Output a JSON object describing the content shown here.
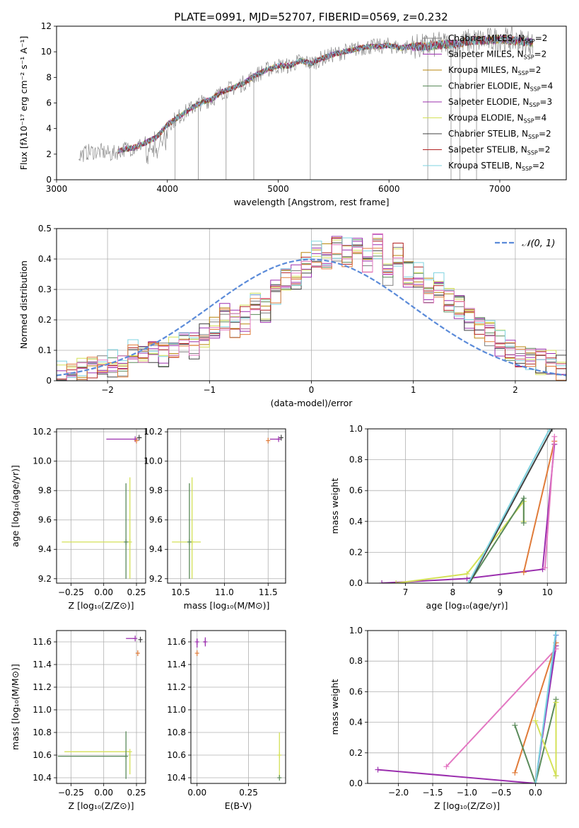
{
  "figure_title": "PLATE=0991, MJD=52707, FIBERID=0569, z=0.232",
  "series_colors": [
    "#7f7f7f",
    "#9b2fae",
    "#b8860b",
    "#5a8a5a",
    "#9b2fae",
    "#d4e157",
    "#404040",
    "#b22222",
    "#7fd3e0"
  ],
  "chart_data": [
    {
      "id": "spectrum",
      "type": "line",
      "title": "PLATE=0991, MJD=52707, FIBERID=0569, z=0.232",
      "xlabel": "wavelength [Angstrom, rest frame]",
      "ylabel": "Flux [fλ10⁻¹⁷ erg cm⁻² s⁻¹ A⁻¹]",
      "xlim": [
        3000,
        7600
      ],
      "ylim": [
        0,
        12
      ],
      "xticks": [
        3000,
        4000,
        5000,
        6000,
        7000
      ],
      "yticks": [
        0,
        2,
        4,
        6,
        8,
        10,
        12
      ],
      "grid": false,
      "legend_position": "right",
      "legend": [
        {
          "label": "Chabrier MILES, N",
          "sub": "SSP",
          "suffix": "=2",
          "color": "#7f7f7f"
        },
        {
          "label": "Salpeter MILES, N",
          "sub": "SSP",
          "suffix": "=2",
          "color": "#9b2fae"
        },
        {
          "label": "Kroupa MILES, N",
          "sub": "SSP",
          "suffix": "=2",
          "color": "#b8860b"
        },
        {
          "label": "Chabrier ELODIE, N",
          "sub": "SSP",
          "suffix": "=4",
          "color": "#5a8a5a"
        },
        {
          "label": "Salpeter ELODIE, N",
          "sub": "SSP",
          "suffix": "=3",
          "color": "#9b2fae"
        },
        {
          "label": "Kroupa ELODIE, N",
          "sub": "SSP",
          "suffix": "=4",
          "color": "#d4e157"
        },
        {
          "label": "Chabrier STELIB, N",
          "sub": "SSP",
          "suffix": "=2",
          "color": "#404040"
        },
        {
          "label": "Salpeter STELIB, N",
          "sub": "SSP",
          "suffix": "=2",
          "color": "#b22222"
        },
        {
          "label": "Kroupa STELIB, N",
          "sub": "SSP",
          "suffix": "=2",
          "color": "#7fd3e0"
        }
      ],
      "envelope": {
        "x": [
          3200,
          3300,
          3400,
          3500,
          3600,
          3700,
          3800,
          3900,
          4000,
          4100,
          4200,
          4300,
          4400,
          4500,
          4600,
          4700,
          4800,
          4900,
          5000,
          5100,
          5200,
          5300,
          5400,
          5500,
          5600,
          5700,
          5800,
          5900,
          6000,
          6100,
          6200,
          6300,
          6400,
          6500,
          6600,
          6700,
          6800,
          6900,
          7000,
          7100,
          7200,
          7300
        ],
        "y": [
          1.9,
          2.2,
          2.2,
          2.0,
          2.4,
          2.5,
          2.9,
          3.3,
          4.3,
          4.9,
          5.5,
          6.0,
          6.3,
          6.9,
          7.2,
          7.6,
          8.2,
          8.6,
          8.9,
          8.9,
          9.3,
          9.1,
          9.5,
          9.8,
          10.0,
          10.2,
          10.4,
          10.4,
          10.5,
          10.3,
          10.4,
          10.4,
          10.5,
          10.6,
          10.6,
          10.8,
          10.9,
          10.9,
          11.0,
          10.9,
          10.8,
          10.7
        ]
      }
    },
    {
      "id": "residuals",
      "type": "line",
      "xlabel": "(data-model)/error",
      "ylabel": "Normed distribution",
      "xlim": [
        -2.5,
        2.5
      ],
      "ylim": [
        0,
        0.5
      ],
      "xticks": [
        -2,
        -1,
        0,
        1,
        2
      ],
      "yticks": [
        0.0,
        0.1,
        0.2,
        0.3,
        0.4,
        0.5
      ],
      "grid": true,
      "legend_position": "top-right",
      "legend": [
        {
          "label": "𝒩(0, 1)",
          "color": "#5b8bd9"
        }
      ],
      "bin_edges_start": -2.5,
      "bin_width": 0.1,
      "histogram_values": [
        0.02,
        0.025,
        0.03,
        0.04,
        0.05,
        0.06,
        0.055,
        0.09,
        0.08,
        0.1,
        0.09,
        0.12,
        0.13,
        0.12,
        0.15,
        0.18,
        0.21,
        0.19,
        0.2,
        0.26,
        0.23,
        0.29,
        0.33,
        0.35,
        0.38,
        0.41,
        0.4,
        0.44,
        0.42,
        0.43,
        0.4,
        0.44,
        0.36,
        0.41,
        0.35,
        0.35,
        0.3,
        0.31,
        0.27,
        0.24,
        0.21,
        0.18,
        0.16,
        0.12,
        0.1,
        0.08,
        0.07,
        0.06,
        0.05,
        0.05
      ]
    },
    {
      "id": "age-vs-Z",
      "type": "scatter",
      "xlabel": "Z [log₁₀(Z/Z⊙)]",
      "ylabel": "age  [log₁₀(age/yr)]",
      "xlim": [
        -0.36,
        0.32
      ],
      "ylim": [
        9.17,
        10.22
      ],
      "xticks": [
        -0.25,
        0.0,
        0.25
      ],
      "xtick_labels": [
        "−0.25",
        "0.00",
        "0.25"
      ],
      "yticks": [
        9.2,
        9.4,
        9.6,
        9.8,
        10.0,
        10.2
      ],
      "ytick_labels": [
        "9.2",
        "9.4",
        "9.6",
        "9.8",
        "10.0",
        "10.2"
      ],
      "grid": true,
      "points": [
        {
          "x": 0.24,
          "y": 10.15,
          "xerr": [
            0.22,
            0.02
          ],
          "color": "#9b2fae"
        },
        {
          "x": 0.27,
          "y": 10.16,
          "xerr": [
            0.0,
            0.02
          ],
          "color": "#404040"
        },
        {
          "x": 0.25,
          "y": 10.14,
          "color": "#e07b39"
        },
        {
          "x": 0.2,
          "y": 9.45,
          "xerr": [
            0.52,
            0.0
          ],
          "yerr": [
            0.25,
            0.44
          ],
          "color": "#d4e157"
        },
        {
          "x": 0.17,
          "y": 9.45,
          "xerr": [
            0.0,
            0.0
          ],
          "yerr": [
            0.25,
            0.4
          ],
          "color": "#5a8a5a"
        }
      ]
    },
    {
      "id": "age-vs-mass",
      "type": "scatter",
      "xlabel": "mass [log₁₀(M/M⊙)]",
      "ylabel": "",
      "xlim": [
        10.35,
        11.7
      ],
      "ylim": [
        9.17,
        10.22
      ],
      "xticks": [
        10.5,
        11.0,
        11.5
      ],
      "xtick_labels": [
        "10.5",
        "11.0",
        "11.5"
      ],
      "yticks": [
        9.2,
        9.4,
        9.6,
        9.8,
        10.0,
        10.2
      ],
      "ytick_labels": [
        "9.2",
        "9.4",
        "9.6",
        "9.8",
        "10.0",
        "10.2"
      ],
      "grid": true,
      "points": [
        {
          "x": 11.62,
          "y": 10.15,
          "xerr": [
            0.1,
            0.02
          ],
          "color": "#9b2fae"
        },
        {
          "x": 11.5,
          "y": 10.14,
          "color": "#e07b39"
        },
        {
          "x": 11.65,
          "y": 10.16,
          "color": "#404040"
        },
        {
          "x": 10.63,
          "y": 9.45,
          "xerr": [
            0.23,
            0.1
          ],
          "yerr": [
            0.25,
            0.44
          ],
          "color": "#d4e157"
        },
        {
          "x": 10.6,
          "y": 9.45,
          "yerr": [
            0.25,
            0.4
          ],
          "color": "#5a8a5a"
        }
      ]
    },
    {
      "id": "weight-vs-age",
      "type": "line",
      "xlabel": "age  [log₁₀(age/yr)]",
      "ylabel": "mass weight",
      "xlim": [
        6.2,
        10.4
      ],
      "ylim": [
        0,
        1
      ],
      "xticks": [
        7,
        8,
        9,
        10
      ],
      "xtick_labels": [
        "7",
        "8",
        "9",
        "10"
      ],
      "yticks": [
        0.0,
        0.2,
        0.4,
        0.6,
        0.8,
        1.0
      ],
      "ytick_labels": [
        "0.0",
        "0.2",
        "0.4",
        "0.6",
        "0.8",
        "1.0"
      ],
      "grid": true,
      "series": [
        {
          "color": "#9b2fae",
          "x": [
            6.5,
            8.3,
            9.9,
            10.15
          ],
          "y": [
            0.0,
            0.03,
            0.09,
            0.9
          ]
        },
        {
          "color": "#e07b39",
          "x": [
            9.5,
            10.15
          ],
          "y": [
            0.07,
            0.92
          ]
        },
        {
          "color": "#d4e157",
          "x": [
            6.8,
            8.3,
            9.5,
            9.5
          ],
          "y": [
            0.0,
            0.06,
            0.53,
            0.4
          ]
        },
        {
          "color": "#5a8a5a",
          "x": [
            8.35,
            9.5,
            9.5
          ],
          "y": [
            0.0,
            0.55,
            0.39
          ]
        },
        {
          "color": "#404040",
          "x": [
            8.35,
            10.1
          ],
          "y": [
            0.0,
            1.0
          ]
        },
        {
          "color": "#7fd3e0",
          "x": [
            8.33,
            10.05
          ],
          "y": [
            0.0,
            1.0
          ]
        },
        {
          "color": "#e377c2",
          "x": [
            9.95,
            10.15
          ],
          "y": [
            0.1,
            0.95
          ]
        }
      ]
    },
    {
      "id": "mass-vs-Z",
      "type": "scatter",
      "xlabel": "Z [log₁₀(Z/Z⊙)]",
      "ylabel": "mass [log₁₀(M/M⊙)]",
      "xlim": [
        -0.36,
        0.32
      ],
      "ylim": [
        10.35,
        11.7
      ],
      "xticks": [
        -0.25,
        0.0,
        0.25
      ],
      "xtick_labels": [
        "−0.25",
        "0.00",
        "0.25"
      ],
      "yticks": [
        10.4,
        10.6,
        10.8,
        11.0,
        11.2,
        11.4,
        11.6
      ],
      "ytick_labels": [
        "10.4",
        "10.6",
        "10.8",
        "11.0",
        "11.2",
        "11.4",
        "11.6"
      ],
      "grid": true,
      "points": [
        {
          "x": 0.24,
          "y": 11.63,
          "xerr": [
            0.07,
            0.0
          ],
          "color": "#9b2fae"
        },
        {
          "x": 0.28,
          "y": 11.62,
          "color": "#404040"
        },
        {
          "x": 0.26,
          "y": 11.5,
          "color": "#e07b39"
        },
        {
          "x": 0.2,
          "y": 10.63,
          "xerr": [
            0.5,
            0.0
          ],
          "yerr": [
            0.2,
            0.0
          ],
          "color": "#d4e157"
        },
        {
          "x": 0.17,
          "y": 10.59,
          "xerr": [
            0.52,
            0.0
          ],
          "yerr": [
            0.2,
            0.22
          ],
          "color": "#5a8a5a"
        }
      ]
    },
    {
      "id": "mass-vs-EBV",
      "type": "scatter",
      "xlabel": "E(B-V)",
      "ylabel": "",
      "xlim": [
        -0.03,
        0.43
      ],
      "ylim": [
        10.35,
        11.7
      ],
      "xticks": [
        0.0,
        0.25
      ],
      "xtick_labels": [
        "0.00",
        "0.25"
      ],
      "yticks": [
        10.4,
        10.6,
        10.8,
        11.0,
        11.2,
        11.4,
        11.6
      ],
      "ytick_labels": [
        "10.4",
        "10.6",
        "10.8",
        "11.0",
        "11.2",
        "11.4",
        "11.6"
      ],
      "grid": true,
      "points": [
        {
          "x": 0.0,
          "y": 11.6,
          "yerr": [
            0.05,
            0.03
          ],
          "color": "#9b2fae"
        },
        {
          "x": 0.04,
          "y": 11.6,
          "xerr": [
            0.01,
            0.0
          ],
          "yerr": [
            0.04,
            0.04
          ],
          "color": "#9b2fae"
        },
        {
          "x": 0.0,
          "y": 11.5,
          "color": "#e07b39"
        },
        {
          "x": 0.4,
          "y": 10.6,
          "yerr": [
            0.2,
            0.2
          ],
          "color": "#d4e157"
        },
        {
          "x": 0.4,
          "y": 10.4,
          "color": "#5a8a5a"
        }
      ]
    },
    {
      "id": "weight-vs-Z",
      "type": "line",
      "xlabel": "Z [log₁₀(Z/Z⊙)]",
      "ylabel": "mass weight",
      "xlim": [
        -2.45,
        0.45
      ],
      "ylim": [
        0,
        1
      ],
      "xticks": [
        -2.0,
        -1.5,
        -1.0,
        -0.5,
        0.0
      ],
      "xtick_labels": [
        "−2.0",
        "−1.5",
        "−1.0",
        "−0.5",
        "0.0"
      ],
      "yticks": [
        0.0,
        0.2,
        0.4,
        0.6,
        0.8,
        1.0
      ],
      "ytick_labels": [
        "0.0",
        "0.2",
        "0.4",
        "0.6",
        "0.8",
        "1.0"
      ],
      "grid": true,
      "series": [
        {
          "color": "#9b2fae",
          "x": [
            -2.3,
            0.0,
            0.3
          ],
          "y": [
            0.09,
            0.0,
            0.9
          ]
        },
        {
          "color": "#e377c2",
          "x": [
            -1.3,
            0.3
          ],
          "y": [
            0.11,
            0.88
          ]
        },
        {
          "color": "#e07b39",
          "x": [
            -0.3,
            0.3
          ],
          "y": [
            0.07,
            0.92
          ]
        },
        {
          "color": "#5a8a5a",
          "x": [
            -0.3,
            0.0,
            0.3,
            0.3
          ],
          "y": [
            0.38,
            0.0,
            0.55,
            0.05
          ]
        },
        {
          "color": "#d4e157",
          "x": [
            0.0,
            0.3,
            0.3
          ],
          "y": [
            0.41,
            0.05,
            0.53
          ]
        },
        {
          "color": "#5b8bd9",
          "x": [
            0.0,
            0.3
          ],
          "y": [
            0.0,
            0.97
          ]
        },
        {
          "color": "#7fd3e0",
          "x": [
            0.0,
            0.3
          ],
          "y": [
            0.0,
            1.0
          ]
        }
      ]
    }
  ]
}
